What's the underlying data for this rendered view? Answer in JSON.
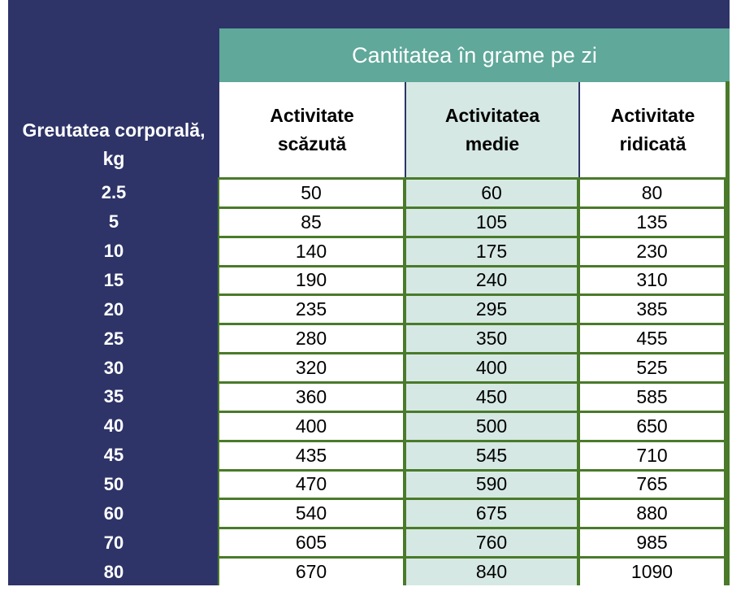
{
  "table": {
    "title": "Cantitatea în grame pe zi",
    "row_header": "Greutatea corporală, kg",
    "columns": [
      "Activitate scăzută",
      "Activitatea medie",
      "Activitate ridicată"
    ],
    "rows": [
      [
        2.5,
        50,
        60,
        80
      ],
      [
        5,
        85,
        105,
        135
      ],
      [
        10,
        140,
        175,
        230
      ],
      [
        15,
        190,
        240,
        310
      ],
      [
        20,
        235,
        295,
        385
      ],
      [
        25,
        280,
        350,
        455
      ],
      [
        30,
        320,
        400,
        525
      ],
      [
        35,
        360,
        450,
        585
      ],
      [
        40,
        400,
        500,
        650
      ],
      [
        45,
        435,
        545,
        710
      ],
      [
        50,
        470,
        590,
        765
      ],
      [
        60,
        540,
        675,
        880
      ],
      [
        70,
        605,
        760,
        985
      ],
      [
        80,
        670,
        840,
        1090
      ]
    ]
  }
}
